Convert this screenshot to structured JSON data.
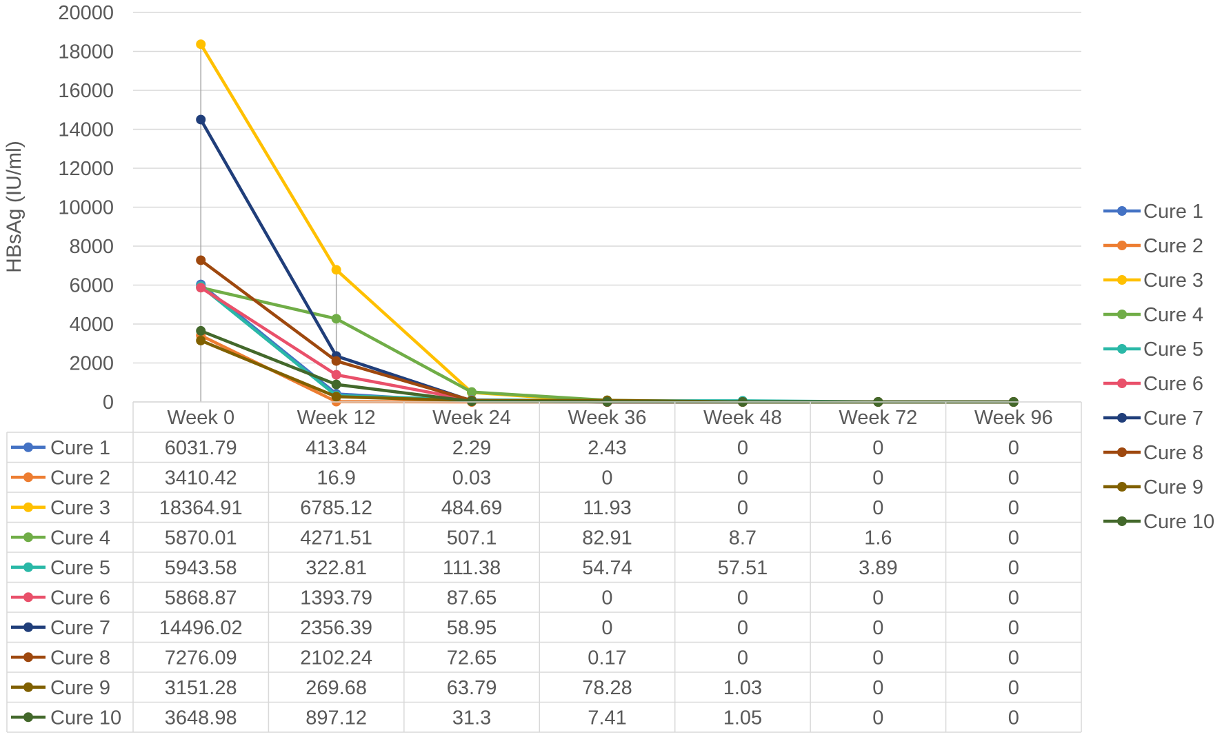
{
  "chart_data": {
    "type": "line",
    "title": "",
    "xlabel": "",
    "ylabel": "HBsAg (IU/ml)",
    "ylim": [
      0,
      20000
    ],
    "y_ticks": [
      "0",
      "2000",
      "4000",
      "6000",
      "8000",
      "10000",
      "12000",
      "14000",
      "16000",
      "18000",
      "20000"
    ],
    "categories": [
      "Week 0",
      "Week 12",
      "Week 24",
      "Week 36",
      "Week 48",
      "Week 72",
      "Week 96"
    ],
    "grid": true,
    "legend_position": "right",
    "data_table": true,
    "series": [
      {
        "name": "Cure 1",
        "color": "#4472C4",
        "values": [
          "6031.79",
          "413.84",
          "2.29",
          "2.43",
          "0",
          "0",
          "0"
        ]
      },
      {
        "name": "Cure 2",
        "color": "#ED7D31",
        "values": [
          "3410.42",
          "16.9",
          "0.03",
          "0",
          "0",
          "0",
          "0"
        ]
      },
      {
        "name": "Cure 3",
        "color": "#FFC000",
        "values": [
          "18364.91",
          "6785.12",
          "484.69",
          "11.93",
          "0",
          "0",
          "0"
        ]
      },
      {
        "name": "Cure 4",
        "color": "#70AD47",
        "values": [
          "5870.01",
          "4271.51",
          "507.1",
          "82.91",
          "8.7",
          "1.6",
          "0"
        ]
      },
      {
        "name": "Cure 5",
        "color": "#2AB8A7",
        "values": [
          "5943.58",
          "322.81",
          "111.38",
          "54.74",
          "57.51",
          "3.89",
          "0"
        ]
      },
      {
        "name": "Cure 6",
        "color": "#E9506A",
        "values": [
          "5868.87",
          "1393.79",
          "87.65",
          "0",
          "0",
          "0",
          "0"
        ]
      },
      {
        "name": "Cure 7",
        "color": "#203E7A",
        "values": [
          "14496.02",
          "2356.39",
          "58.95",
          "0",
          "0",
          "0",
          "0"
        ]
      },
      {
        "name": "Cure 8",
        "color": "#9E480E",
        "values": [
          "7276.09",
          "2102.24",
          "72.65",
          "0.17",
          "0",
          "0",
          "0"
        ]
      },
      {
        "name": "Cure 9",
        "color": "#806000",
        "values": [
          "3151.28",
          "269.68",
          "63.79",
          "78.28",
          "1.03",
          "0",
          "0"
        ]
      },
      {
        "name": "Cure 10",
        "color": "#43682B",
        "values": [
          "3648.98",
          "897.12",
          "31.3",
          "7.41",
          "1.05",
          "0",
          "0"
        ]
      }
    ]
  }
}
